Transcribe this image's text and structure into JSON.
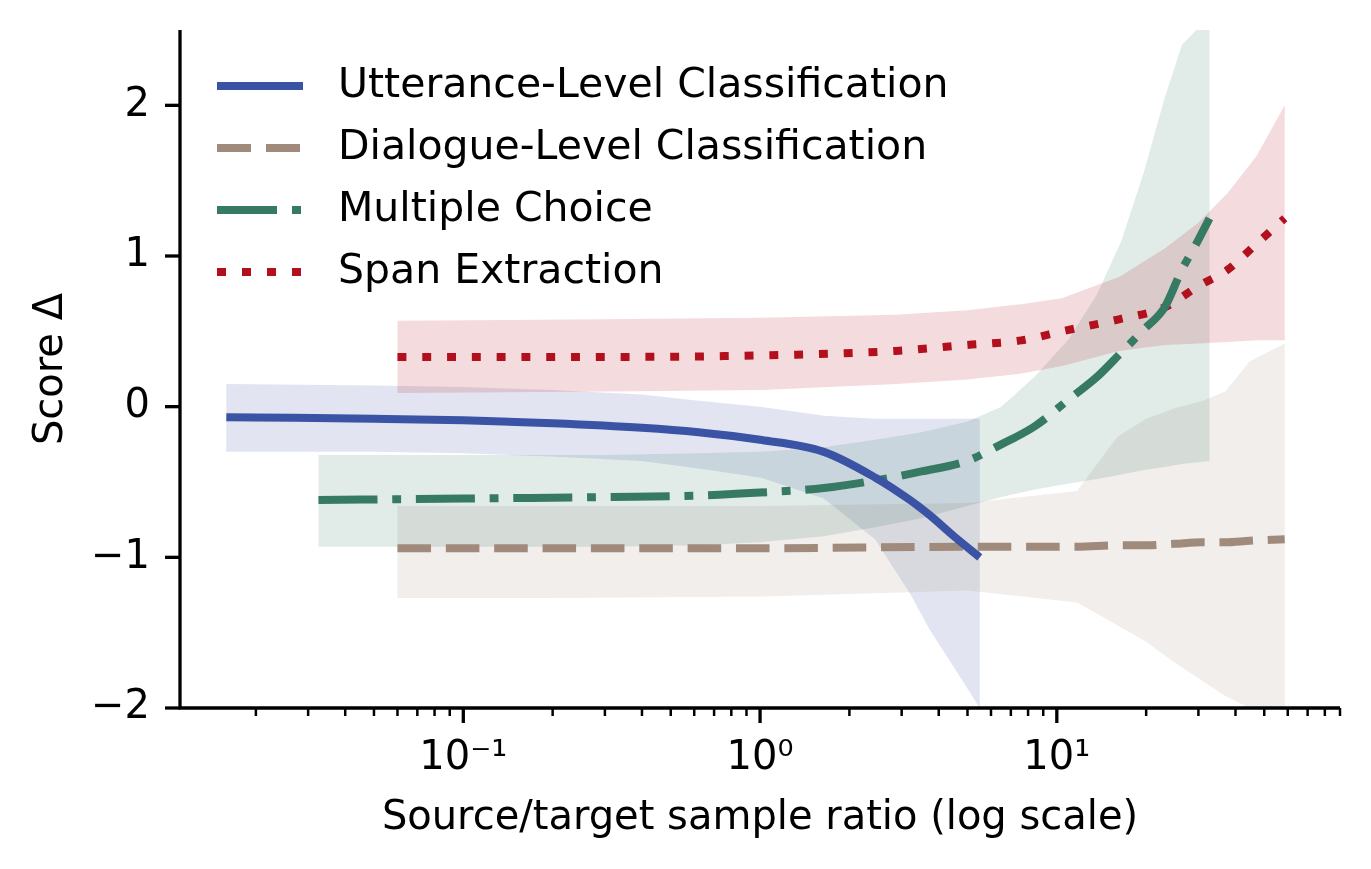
{
  "chart_data": {
    "type": "line",
    "xlabel": "Source/target sample ratio (log scale)",
    "ylabel": "Score Δ",
    "log": "x",
    "xlim": [
      0.0111,
      90
    ],
    "xticks": [
      {
        "value": 0.02,
        "label": null
      },
      {
        "value": 0.03,
        "label": null
      },
      {
        "value": 0.04,
        "label": null
      },
      {
        "value": 0.05,
        "label": null
      },
      {
        "value": 0.06,
        "label": null
      },
      {
        "value": 0.07,
        "label": null
      },
      {
        "value": 0.08,
        "label": null
      },
      {
        "value": 0.09,
        "label": null
      },
      {
        "value": 0.1,
        "label": "10⁻¹"
      },
      {
        "value": 0.2,
        "label": null
      },
      {
        "value": 0.3,
        "label": null
      },
      {
        "value": 0.4,
        "label": null
      },
      {
        "value": 0.5,
        "label": null
      },
      {
        "value": 0.6,
        "label": null
      },
      {
        "value": 0.7,
        "label": null
      },
      {
        "value": 0.8,
        "label": null
      },
      {
        "value": 0.9,
        "label": null
      },
      {
        "value": 1,
        "label": "10⁰"
      },
      {
        "value": 2,
        "label": null
      },
      {
        "value": 3,
        "label": null
      },
      {
        "value": 4,
        "label": null
      },
      {
        "value": 5,
        "label": null
      },
      {
        "value": 6,
        "label": null
      },
      {
        "value": 7,
        "label": null
      },
      {
        "value": 8,
        "label": null
      },
      {
        "value": 9,
        "label": null
      },
      {
        "value": 10,
        "label": "10¹"
      },
      {
        "value": 20,
        "label": null
      },
      {
        "value": 30,
        "label": null
      },
      {
        "value": 40,
        "label": null
      },
      {
        "value": 50,
        "label": null
      },
      {
        "value": 60,
        "label": null
      },
      {
        "value": 70,
        "label": null
      },
      {
        "value": 80,
        "label": null
      },
      {
        "value": 90,
        "label": null
      }
    ],
    "ylim": [
      -2,
      2.5
    ],
    "yticks": [
      -2,
      -1,
      0,
      1,
      2
    ],
    "legend": "top left",
    "series": [
      {
        "name": "Utterance-Level Classification",
        "color": "#3a53a4",
        "line_style": "solid",
        "x": [
          0.0159,
          0.05,
          0.1,
          0.2,
          0.4,
          0.62,
          1,
          1.64,
          2.44,
          3.2,
          3.73,
          4.5,
          5.5
        ],
        "values": [
          -0.07,
          -0.08,
          -0.09,
          -0.11,
          -0.14,
          -0.17,
          -0.22,
          -0.3,
          -0.47,
          -0.62,
          -0.72,
          -0.86,
          -1.0
        ],
        "upper": [
          0.15,
          0.14,
          0.13,
          0.11,
          0.08,
          0.04,
          0.0,
          -0.06,
          -0.08,
          -0.08,
          -0.08,
          -0.08,
          -0.08
        ],
        "lower": [
          -0.3,
          -0.3,
          -0.31,
          -0.33,
          -0.36,
          -0.41,
          -0.47,
          -0.61,
          -0.88,
          -1.24,
          -1.48,
          -1.73,
          -2.0
        ]
      },
      {
        "name": "Dialogue-Level Classification",
        "color": "#a08a7b",
        "line_style": "dashed",
        "x": [
          0.06,
          0.2,
          1,
          5,
          11.7,
          16,
          20,
          25,
          31,
          37,
          44.6,
          58.6
        ],
        "values": [
          -0.94,
          -0.94,
          -0.94,
          -0.93,
          -0.93,
          -0.92,
          -0.92,
          -0.91,
          -0.9,
          -0.9,
          -0.89,
          -0.88
        ],
        "upper": [
          -0.66,
          -0.66,
          -0.66,
          -0.64,
          -0.56,
          -0.2,
          -0.08,
          -0.01,
          0.04,
          0.1,
          0.3,
          0.42
        ],
        "lower": [
          -1.27,
          -1.27,
          -1.26,
          -1.22,
          -1.3,
          -1.45,
          -1.56,
          -1.7,
          -1.82,
          -1.92,
          -2.0,
          -2.0
        ]
      },
      {
        "name": "Multiple Choice",
        "color": "#377a63",
        "line_style": "dashdot",
        "x": [
          0.0325,
          0.1,
          0.3,
          0.62,
          1,
          1.64,
          2.44,
          3.5,
          4.98,
          6.5,
          8.43,
          11,
          13.7,
          16.5,
          19.6,
          23.1,
          26.4,
          29.5,
          32.7
        ],
        "values": [
          -0.62,
          -0.61,
          -0.6,
          -0.59,
          -0.57,
          -0.54,
          -0.49,
          -0.43,
          -0.36,
          -0.25,
          -0.13,
          0.05,
          0.2,
          0.36,
          0.51,
          0.66,
          0.91,
          1.08,
          1.25
        ],
        "upper": [
          -0.32,
          -0.32,
          -0.32,
          -0.31,
          -0.3,
          -0.27,
          -0.22,
          -0.17,
          -0.1,
          0.0,
          0.2,
          0.45,
          0.75,
          1.1,
          1.55,
          2.05,
          2.4,
          2.5,
          2.5
        ],
        "lower": [
          -0.93,
          -0.93,
          -0.93,
          -0.92,
          -0.9,
          -0.86,
          -0.8,
          -0.74,
          -0.66,
          -0.6,
          -0.55,
          -0.51,
          -0.48,
          -0.45,
          -0.42,
          -0.4,
          -0.38,
          -0.37,
          -0.36
        ]
      },
      {
        "name": "Span Extraction",
        "color": "#b3101e",
        "line_style": "dotted",
        "x": [
          0.06,
          0.3,
          1,
          2.87,
          5,
          7.6,
          10.4,
          16.2,
          23.1,
          30,
          37.7,
          47,
          58.6
        ],
        "values": [
          0.33,
          0.33,
          0.34,
          0.37,
          0.41,
          0.44,
          0.5,
          0.58,
          0.66,
          0.8,
          0.91,
          1.08,
          1.25
        ],
        "upper": [
          0.57,
          0.58,
          0.59,
          0.61,
          0.64,
          0.68,
          0.72,
          0.86,
          1.05,
          1.22,
          1.42,
          1.66,
          2.0
        ],
        "lower": [
          0.09,
          0.1,
          0.11,
          0.15,
          0.18,
          0.22,
          0.27,
          0.37,
          0.41,
          0.42,
          0.43,
          0.44,
          0.44
        ]
      }
    ]
  }
}
